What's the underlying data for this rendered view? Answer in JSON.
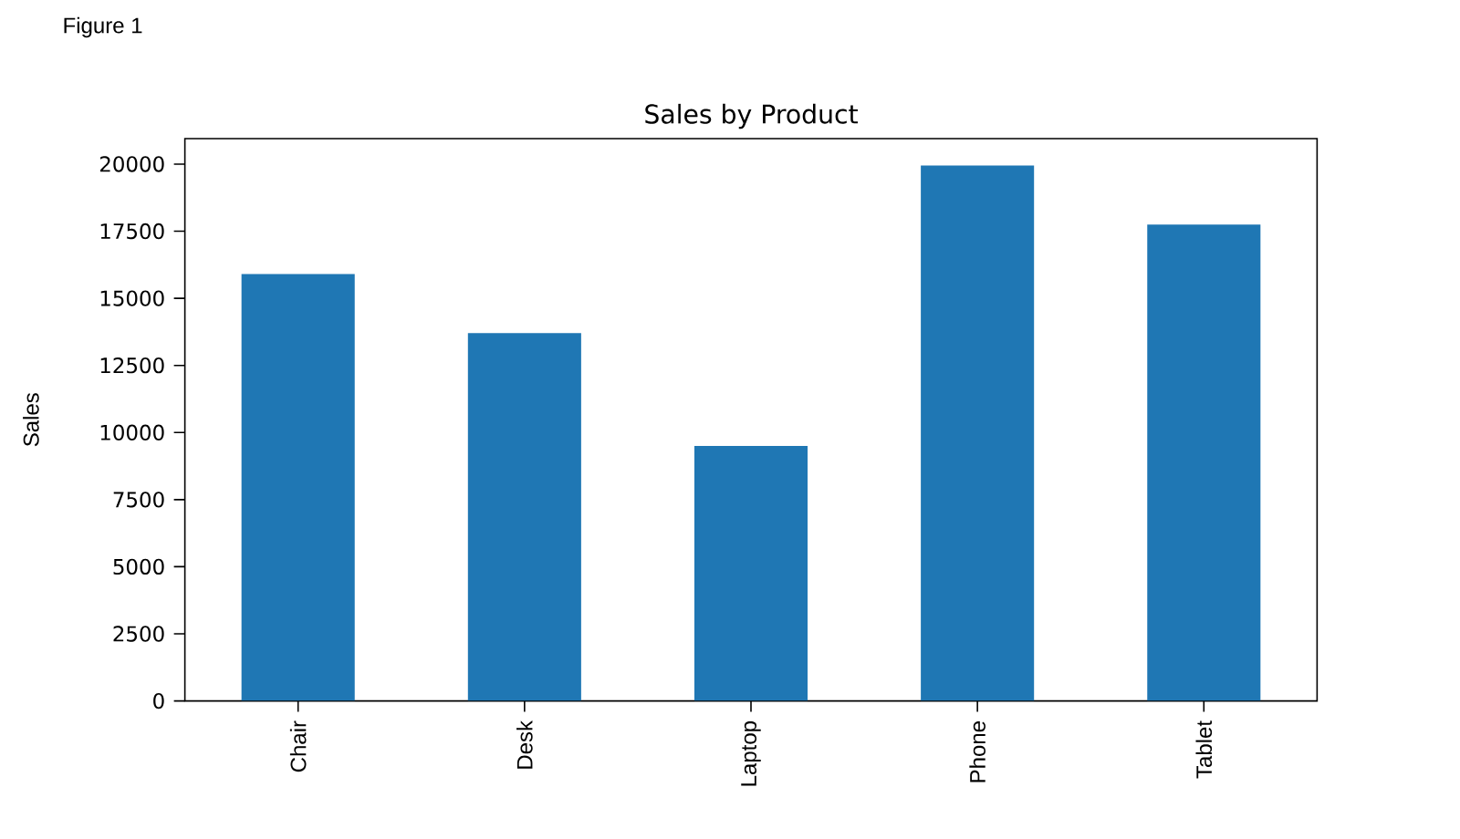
{
  "chart_data": {
    "type": "bar",
    "title": "Sales by Product",
    "ylabel": "Sales",
    "categories": [
      "Chair",
      "Desk",
      "Laptop",
      "Phone",
      "Tablet"
    ],
    "values": [
      15900,
      13700,
      9500,
      19950,
      17750
    ],
    "color": "#1f77b4",
    "ylim": [
      0,
      20950
    ],
    "yticks": [
      0,
      2500,
      5000,
      7500,
      10000,
      12500,
      15000,
      17500,
      20000
    ],
    "annotations": [
      "Figure 1"
    ]
  }
}
